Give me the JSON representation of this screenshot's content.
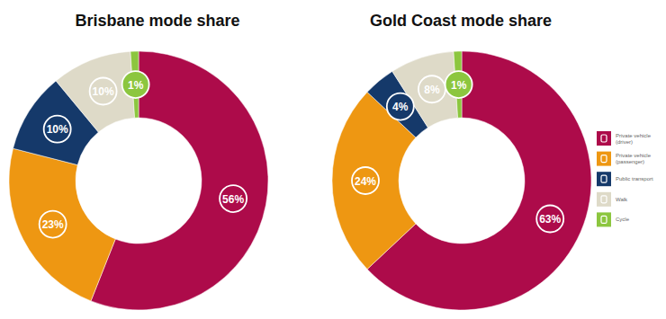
{
  "chart_data": [
    {
      "type": "pie",
      "title": "Brisbane mode share",
      "categories": [
        "Private vehicle (driver)",
        "Private vehicle (passenger)",
        "Public transport",
        "Walk",
        "Cycle"
      ],
      "values": [
        56,
        23,
        10,
        10,
        1
      ],
      "value_labels": [
        "56%",
        "23%",
        "10%",
        "10%",
        "1%"
      ],
      "colors": [
        "#ad0b4a",
        "#ee9712",
        "#15396a",
        "#dedac8",
        "#8cc63f"
      ],
      "data_labels": true
    },
    {
      "type": "pie",
      "title": "Gold Coast mode share",
      "categories": [
        "Private vehicle (driver)",
        "Private vehicle (passenger)",
        "Public transport",
        "Walk",
        "Cycle"
      ],
      "values": [
        63,
        24,
        4,
        8,
        1
      ],
      "value_labels": [
        "63%",
        "24%",
        "4%",
        "8%",
        "1%"
      ],
      "colors": [
        "#ad0b4a",
        "#ee9712",
        "#15396a",
        "#dedac8",
        "#8cc63f"
      ],
      "data_labels": true,
      "legend": "right"
    }
  ]
}
